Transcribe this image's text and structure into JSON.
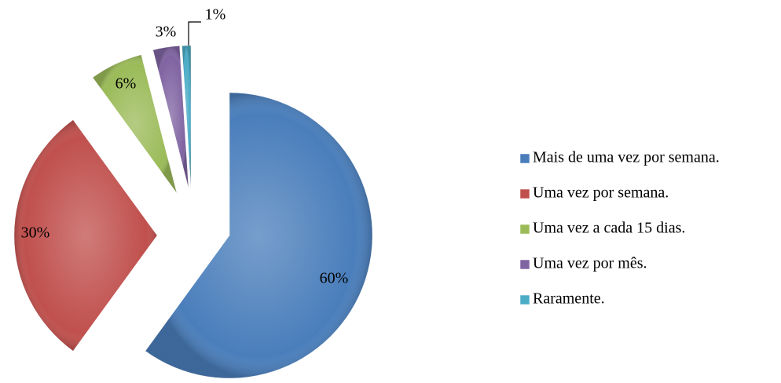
{
  "chart_data": {
    "type": "pie",
    "categories": [
      "Mais de uma vez por semana.",
      "Uma vez por semana.",
      "Uma vez a cada 15 dias.",
      "Uma vez por mês.",
      "Raramente."
    ],
    "values": [
      60,
      30,
      6,
      3,
      1
    ],
    "value_labels": [
      "60%",
      "30%",
      "6%",
      "3%",
      "1%"
    ],
    "colors": [
      "#4a7ebb",
      "#c0504d",
      "#9bbb59",
      "#8064a2",
      "#4bacc6"
    ],
    "legend": "right"
  }
}
